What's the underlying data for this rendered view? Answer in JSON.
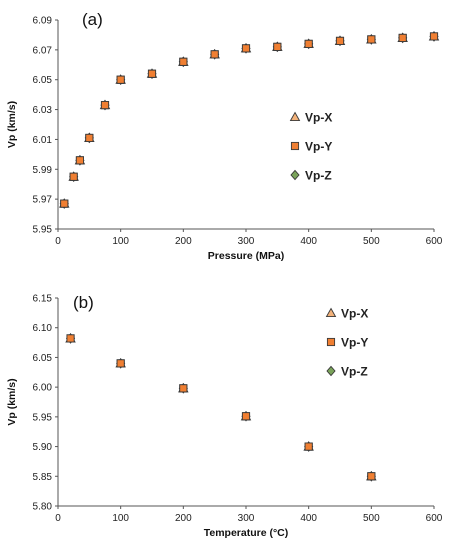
{
  "chart_data": [
    {
      "type": "scatter",
      "panel_label": "(a)",
      "xlabel": "Pressure (MPa)",
      "ylabel": "Vp (km/s)",
      "xlim": [
        0,
        600
      ],
      "ylim": [
        5.95,
        6.09
      ],
      "xticks": [
        "0",
        "100",
        "200",
        "300",
        "400",
        "500",
        "600"
      ],
      "yticks": [
        "5.95",
        "5.97",
        "5.99",
        "6.01",
        "6.03",
        "6.05",
        "6.07",
        "6.09"
      ],
      "grid": false,
      "legend_position": "center-right",
      "series": [
        {
          "name": "Vp-X",
          "marker": "triangle",
          "color": "#f3b27a",
          "x": [
            10,
            25,
            35,
            50,
            75,
            100,
            150,
            200,
            250,
            300,
            350,
            400,
            450,
            500,
            550,
            600
          ],
          "y": [
            5.967,
            5.985,
            5.996,
            6.011,
            6.033,
            6.05,
            6.054,
            6.062,
            6.067,
            6.071,
            6.072,
            6.074,
            6.076,
            6.077,
            6.078,
            6.079
          ]
        },
        {
          "name": "Vp-Y",
          "marker": "square",
          "color": "#f07f32",
          "x": [
            10,
            25,
            35,
            50,
            75,
            100,
            150,
            200,
            250,
            300,
            350,
            400,
            450,
            500,
            550,
            600
          ],
          "y": [
            5.967,
            5.985,
            5.996,
            6.011,
            6.033,
            6.05,
            6.054,
            6.062,
            6.067,
            6.071,
            6.072,
            6.074,
            6.076,
            6.077,
            6.078,
            6.079
          ]
        },
        {
          "name": "Vp-Z",
          "marker": "diamond",
          "color": "#7aa35a",
          "x": [
            10,
            25,
            35,
            50,
            75,
            100,
            150,
            200,
            250,
            300,
            350,
            400,
            450,
            500,
            550,
            600
          ],
          "y": [
            5.967,
            5.985,
            5.996,
            6.011,
            6.033,
            6.05,
            6.054,
            6.062,
            6.067,
            6.071,
            6.072,
            6.074,
            6.076,
            6.077,
            6.078,
            6.079
          ]
        }
      ]
    },
    {
      "type": "scatter",
      "panel_label": "(b)",
      "xlabel": "Temperature (°C)",
      "ylabel": "Vp (km/s)",
      "xlim": [
        0,
        600
      ],
      "ylim": [
        5.8,
        6.15
      ],
      "xticks": [
        "0",
        "100",
        "200",
        "300",
        "400",
        "500",
        "600"
      ],
      "yticks": [
        "5.80",
        "5.85",
        "5.90",
        "5.95",
        "6.00",
        "6.05",
        "6.10",
        "6.15"
      ],
      "grid": false,
      "legend_position": "top-right",
      "series": [
        {
          "name": "Vp-X",
          "marker": "triangle",
          "color": "#f3b27a",
          "x": [
            20,
            100,
            200,
            300,
            400,
            500
          ],
          "y": [
            6.082,
            6.04,
            5.998,
            5.951,
            5.9,
            5.85
          ]
        },
        {
          "name": "Vp-Y",
          "marker": "square",
          "color": "#f07f32",
          "x": [
            20,
            100,
            200,
            300,
            400,
            500
          ],
          "y": [
            6.082,
            6.04,
            5.998,
            5.951,
            5.9,
            5.85
          ]
        },
        {
          "name": "Vp-Z",
          "marker": "diamond",
          "color": "#7aa35a",
          "x": [
            20,
            100,
            200,
            300,
            400,
            500
          ],
          "y": [
            6.082,
            6.04,
            5.998,
            5.951,
            5.9,
            5.85
          ]
        }
      ]
    }
  ]
}
